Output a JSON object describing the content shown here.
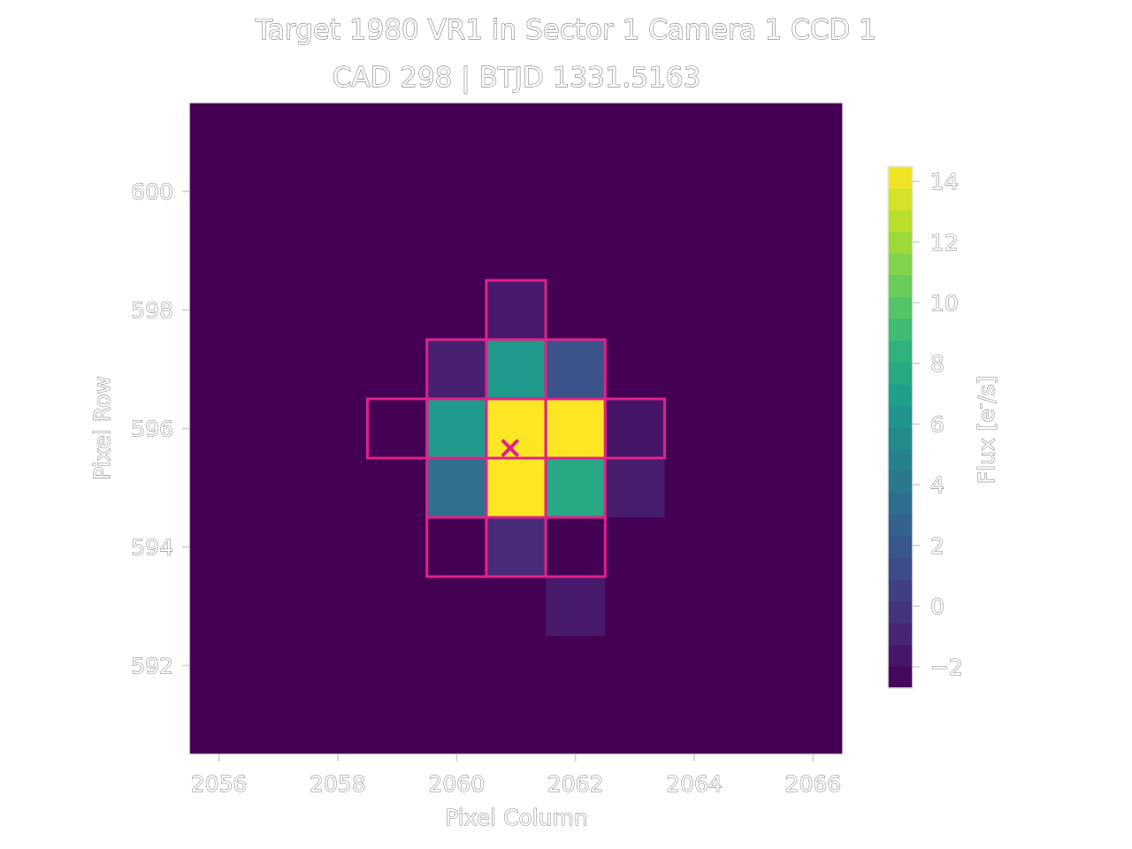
{
  "chart_data": {
    "type": "heatmap",
    "title": "Target 1980 VR1 in Sector 1 Camera 1 CCD 1",
    "subtitle": "CAD 298 | BTJD 1331.5163",
    "xlabel": "Pixel Column",
    "ylabel": "Pixel Row",
    "xlim": [
      2055.5,
      2066.5
    ],
    "ylim": [
      590.5,
      601.5
    ],
    "xticks": [
      2056,
      2058,
      2060,
      2062,
      2064,
      2066
    ],
    "yticks": [
      592,
      594,
      596,
      598,
      600
    ],
    "background_value": -2.7,
    "pixels": [
      {
        "col": 2061,
        "row": 598,
        "value": -1.5
      },
      {
        "col": 2060,
        "row": 597,
        "value": -1.2
      },
      {
        "col": 2061,
        "row": 597,
        "value": 6.6
      },
      {
        "col": 2062,
        "row": 597,
        "value": 1.6
      },
      {
        "col": 2059,
        "row": 596,
        "value": -2.7
      },
      {
        "col": 2060,
        "row": 596,
        "value": 6.6
      },
      {
        "col": 2061,
        "row": 596,
        "value": 14.5
      },
      {
        "col": 2062,
        "row": 596,
        "value": 14.5
      },
      {
        "col": 2063,
        "row": 596,
        "value": -1.7
      },
      {
        "col": 2060,
        "row": 595,
        "value": 3.6
      },
      {
        "col": 2061,
        "row": 595,
        "value": 14.5
      },
      {
        "col": 2062,
        "row": 595,
        "value": 7.6
      },
      {
        "col": 2063,
        "row": 595,
        "value": -1.4
      },
      {
        "col": 2060,
        "row": 594,
        "value": -2.7
      },
      {
        "col": 2061,
        "row": 594,
        "value": -0.6
      },
      {
        "col": 2062,
        "row": 594,
        "value": -2.7
      },
      {
        "col": 2062,
        "row": 593,
        "value": -1.5
      }
    ],
    "aperture": [
      {
        "col": 2061,
        "row": 598
      },
      {
        "col": 2060,
        "row": 597
      },
      {
        "col": 2061,
        "row": 597
      },
      {
        "col": 2062,
        "row": 597
      },
      {
        "col": 2059,
        "row": 596
      },
      {
        "col": 2060,
        "row": 596
      },
      {
        "col": 2061,
        "row": 596
      },
      {
        "col": 2062,
        "row": 596
      },
      {
        "col": 2063,
        "row": 596
      },
      {
        "col": 2060,
        "row": 595
      },
      {
        "col": 2061,
        "row": 595
      },
      {
        "col": 2062,
        "row": 595
      },
      {
        "col": 2060,
        "row": 594
      },
      {
        "col": 2061,
        "row": 594
      },
      {
        "col": 2062,
        "row": 594
      }
    ],
    "target_marker": {
      "col": 2060.9,
      "row": 595.67
    },
    "aperture_color": "#e0218a",
    "colorbar": {
      "label": "Flux [e$^-$/s]",
      "vmin": -2.7,
      "vmax": 14.5,
      "ticks": [
        14,
        12,
        10,
        8,
        6,
        4,
        2,
        0,
        -2
      ],
      "tick_labels": [
        "14",
        "12",
        "10",
        "8",
        "6",
        "4",
        "2",
        "0",
        "−2"
      ],
      "colormap": "viridis"
    }
  }
}
